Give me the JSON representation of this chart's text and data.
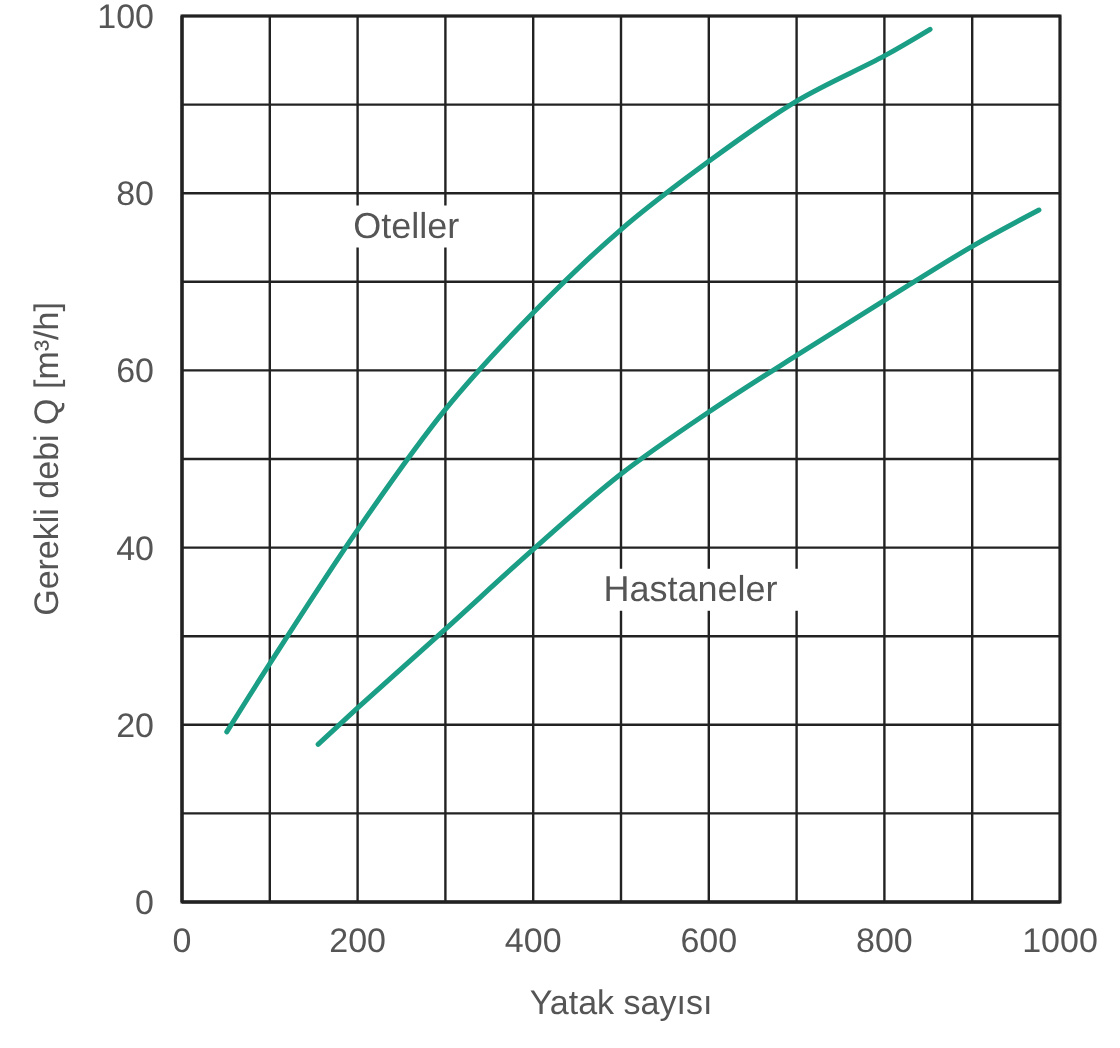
{
  "chart_data": {
    "type": "line",
    "xlabel": "Yatak sayısı",
    "ylabel": "Gerekli debi Q [m³/h]",
    "xlim": [
      0,
      1000
    ],
    "ylim": [
      0,
      100
    ],
    "xticks": [
      0,
      {
        "value": 100,
        "label": null
      },
      200,
      {
        "value": 300,
        "label": null
      },
      400,
      {
        "value": 500,
        "label": null
      },
      600,
      {
        "value": 700,
        "label": null
      },
      800,
      {
        "value": 900,
        "label": null
      },
      1000
    ],
    "yticks": [
      0,
      {
        "value": 10,
        "label": null
      },
      20,
      {
        "value": 30,
        "label": null
      },
      40,
      {
        "value": 50,
        "label": null
      },
      60,
      {
        "value": 70,
        "label": null
      },
      80,
      {
        "value": 90,
        "label": null
      },
      100
    ],
    "grid": true,
    "marker": "none",
    "line_style": "solid",
    "series": [
      {
        "name": "Oteller",
        "color": "#1a9e85",
        "x": [
          51,
          100,
          200,
          300,
          400,
          500,
          600,
          700,
          800,
          852
        ],
        "values": [
          19.2,
          26.9,
          42,
          55.6,
          66.5,
          75.9,
          83.6,
          90.4,
          95.5,
          98.5
        ]
      },
      {
        "name": "Hastaneler",
        "color": "#1a9e85",
        "x": [
          155,
          200,
          300,
          400,
          500,
          600,
          700,
          800,
          900,
          976
        ],
        "values": [
          17.8,
          21.9,
          30.8,
          39.8,
          48.3,
          55.3,
          61.7,
          67.9,
          74,
          78.1
        ]
      }
    ]
  }
}
